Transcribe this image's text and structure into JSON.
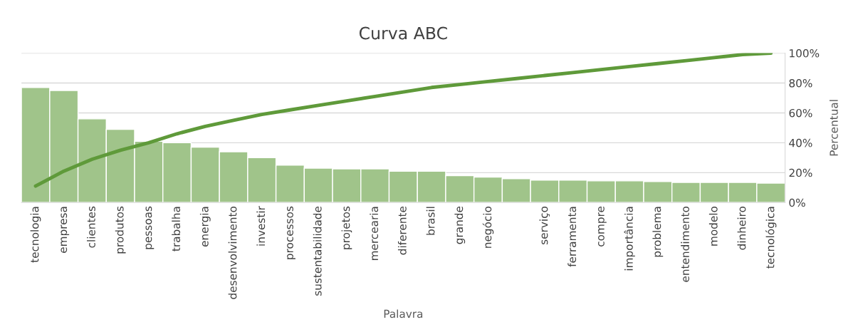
{
  "chart_data": {
    "type": "bar",
    "title": "Curva ABC",
    "xlabel": "Palavra",
    "ylabel": "Percentual",
    "categories": [
      "tecnologia",
      "empresa",
      "clientes",
      "produtos",
      "pessoas",
      "trabalha",
      "energia",
      "desenvolvimento",
      "investir",
      "processos",
      "sustentabilidade",
      "projetos",
      "mercearia",
      "diferente",
      "brasil",
      "grande",
      "negócio",
      null,
      "serviço",
      "ferramenta",
      "compre",
      "importância",
      "problema",
      "entendimento",
      "modelo",
      "dinheiro",
      "tecnológica"
    ],
    "series": [
      {
        "color": "#a0c48a",
        "values": [
          77,
          75,
          56,
          49,
          41,
          40,
          37,
          34,
          30,
          25,
          23,
          22.5,
          22.5,
          21,
          21,
          18,
          17,
          16,
          15,
          15,
          14.5,
          14.5,
          14,
          13.5,
          13.5,
          13.5,
          13
        ]
      },
      {
        "type": "line",
        "color": "#5f9a3a",
        "values": [
          11,
          21,
          29,
          35,
          40,
          46,
          51,
          55,
          59,
          62,
          65,
          68,
          71,
          74,
          77,
          79,
          81,
          83,
          85,
          87,
          89,
          91,
          93,
          95,
          97,
          99,
          100
        ]
      }
    ],
    "ylim": [
      0,
      100
    ],
    "yticks": [
      {
        "value": 0,
        "label": "0%"
      },
      {
        "value": 20,
        "label": "20%"
      },
      {
        "value": 40,
        "label": "40%"
      },
      {
        "value": 60,
        "label": "60%"
      },
      {
        "value": 80,
        "label": "80%"
      },
      {
        "value": 100,
        "label": "100%"
      }
    ],
    "grid": "y",
    "legend": false
  }
}
